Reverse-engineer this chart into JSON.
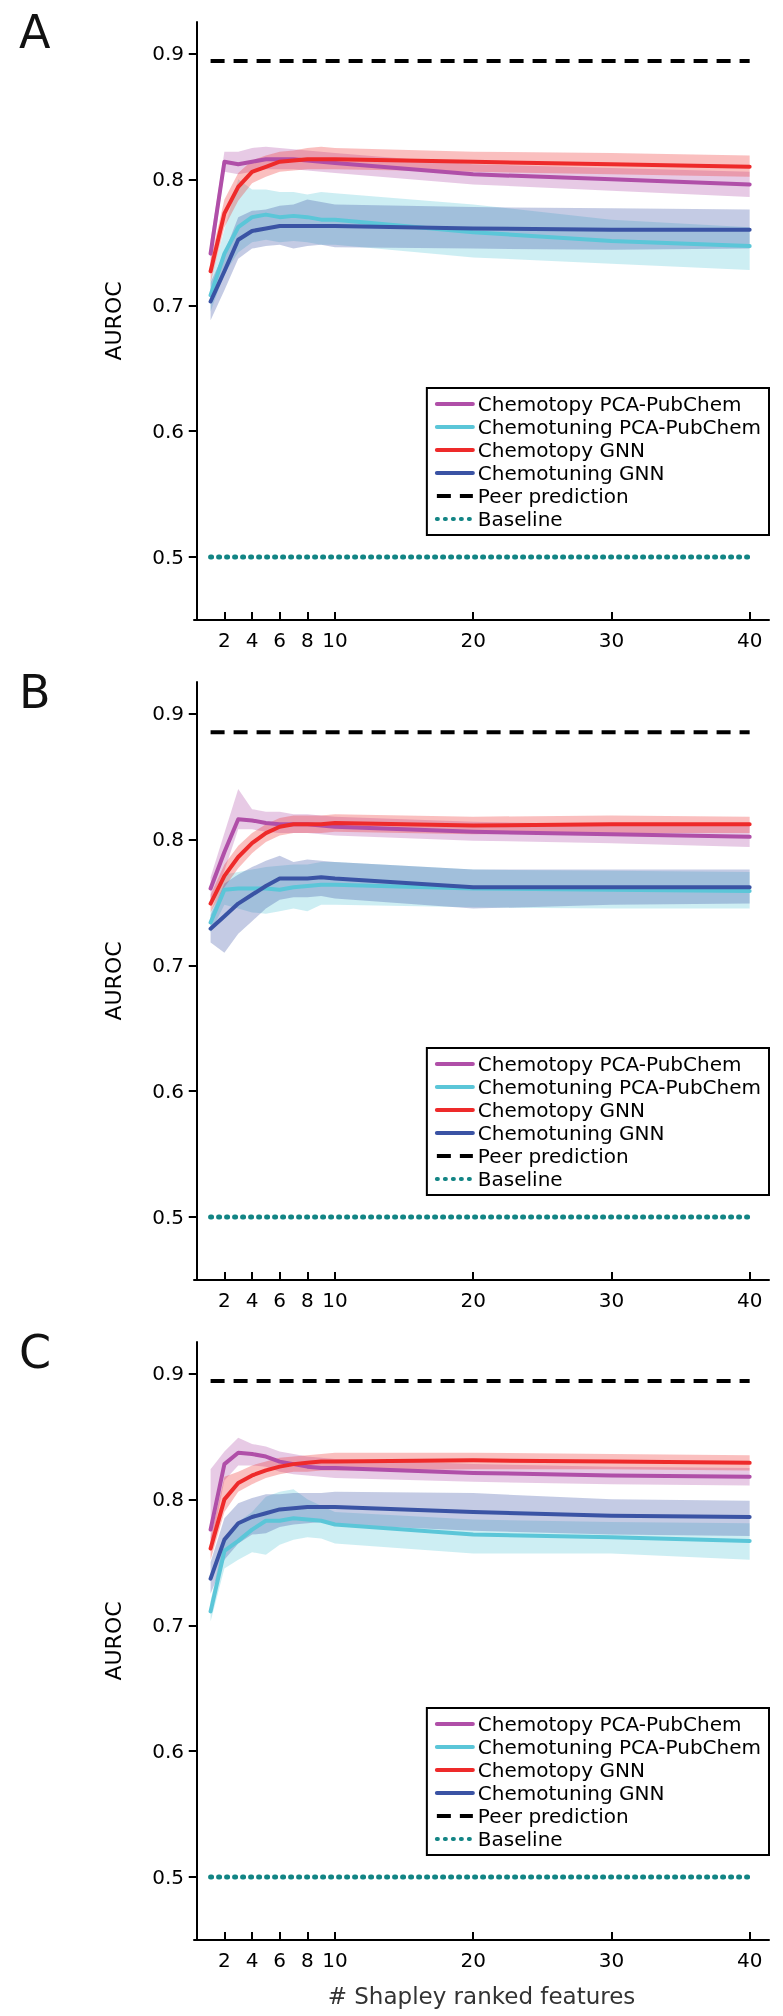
{
  "chart_data": [
    {
      "type": "line",
      "title": "A",
      "ylabel": "AUROC",
      "x": [
        1,
        2,
        3,
        4,
        5,
        6,
        7,
        8,
        9,
        10,
        20,
        30,
        40
      ],
      "xlim": [
        -0.2,
        41.4
      ],
      "xticks": [
        2,
        4,
        6,
        8,
        10,
        20,
        30,
        40
      ],
      "ylim": [
        0.45,
        0.925
      ],
      "yticks": [
        0.5,
        0.6,
        0.7,
        0.8,
        0.9
      ],
      "legend": "right",
      "marker": "none",
      "series": [
        {
          "name": "Chemotopy PCA-PubChem",
          "color": "#b04fa8",
          "values": [
            0.741,
            0.814,
            0.812,
            0.814,
            0.816,
            0.816,
            0.816,
            0.815,
            0.814,
            0.813,
            0.804,
            0.8,
            0.796
          ],
          "lower": [
            0.73,
            0.806,
            0.804,
            0.806,
            0.808,
            0.808,
            0.808,
            0.807,
            0.806,
            0.805,
            0.796,
            0.791,
            0.786
          ],
          "upper": [
            0.752,
            0.822,
            0.822,
            0.825,
            0.826,
            0.825,
            0.824,
            0.823,
            0.822,
            0.821,
            0.812,
            0.809,
            0.806
          ]
        },
        {
          "name": "Chemotuning PCA-PubChem",
          "color": "#5bc6d8",
          "values": [
            0.708,
            0.741,
            0.762,
            0.77,
            0.772,
            0.77,
            0.771,
            0.77,
            0.768,
            0.768,
            0.758,
            0.751,
            0.747
          ],
          "lower": [
            0.695,
            0.725,
            0.742,
            0.75,
            0.752,
            0.75,
            0.751,
            0.75,
            0.748,
            0.748,
            0.738,
            0.733,
            0.728
          ],
          "upper": [
            0.72,
            0.76,
            0.8,
            0.792,
            0.792,
            0.79,
            0.79,
            0.788,
            0.79,
            0.789,
            0.78,
            0.768,
            0.762
          ]
        },
        {
          "name": "Chemotopy GNN",
          "color": "#ee2a2a",
          "values": [
            0.727,
            0.773,
            0.794,
            0.806,
            0.81,
            0.814,
            0.815,
            0.816,
            0.816,
            0.816,
            0.814,
            0.812,
            0.81
          ],
          "lower": [
            0.718,
            0.762,
            0.783,
            0.797,
            0.802,
            0.806,
            0.807,
            0.808,
            0.808,
            0.808,
            0.806,
            0.804,
            0.802
          ],
          "upper": [
            0.736,
            0.784,
            0.805,
            0.815,
            0.819,
            0.822,
            0.823,
            0.825,
            0.826,
            0.825,
            0.822,
            0.821,
            0.819
          ]
        },
        {
          "name": "Chemotuning GNN",
          "color": "#3a53a4",
          "values": [
            0.703,
            0.727,
            0.752,
            0.759,
            0.761,
            0.763,
            0.763,
            0.763,
            0.763,
            0.763,
            0.761,
            0.76,
            0.76
          ],
          "lower": [
            0.688,
            0.712,
            0.737,
            0.745,
            0.747,
            0.748,
            0.745,
            0.747,
            0.748,
            0.746,
            0.745,
            0.744,
            0.745
          ],
          "upper": [
            0.718,
            0.742,
            0.77,
            0.775,
            0.776,
            0.779,
            0.78,
            0.784,
            0.782,
            0.78,
            0.778,
            0.777,
            0.776
          ]
        },
        {
          "name": "Peer prediction",
          "color": "#000000",
          "values": [
            0.894,
            0.894,
            0.894,
            0.894,
            0.894,
            0.894,
            0.894,
            0.894,
            0.894,
            0.894,
            0.894,
            0.894,
            0.894
          ],
          "line_style": "dashed"
        },
        {
          "name": "Baseline",
          "color": "#138585",
          "values": [
            0.5,
            0.5,
            0.5,
            0.5,
            0.5,
            0.5,
            0.5,
            0.5,
            0.5,
            0.5,
            0.5,
            0.5,
            0.5
          ],
          "line_style": "dotted"
        }
      ]
    },
    {
      "type": "line",
      "title": "B",
      "ylabel": "AUROC",
      "x": [
        1,
        2,
        3,
        4,
        5,
        6,
        7,
        8,
        9,
        10,
        20,
        30,
        40
      ],
      "xlim": [
        -0.2,
        41.4
      ],
      "xticks": [
        2,
        4,
        6,
        8,
        10,
        20,
        30,
        40
      ],
      "ylim": [
        0.45,
        0.925
      ],
      "yticks": [
        0.5,
        0.6,
        0.7,
        0.8,
        0.9
      ],
      "legend": "right",
      "marker": "none",
      "series": [
        {
          "name": "Chemotopy PCA-PubChem",
          "color": "#b04fa8",
          "values": [
            0.761,
            0.79,
            0.816,
            0.815,
            0.813,
            0.812,
            0.812,
            0.812,
            0.811,
            0.81,
            0.806,
            0.804,
            0.802
          ],
          "lower": [
            0.752,
            0.775,
            0.808,
            0.808,
            0.806,
            0.805,
            0.805,
            0.805,
            0.804,
            0.803,
            0.799,
            0.797,
            0.794
          ],
          "upper": [
            0.77,
            0.805,
            0.84,
            0.824,
            0.822,
            0.822,
            0.82,
            0.82,
            0.819,
            0.818,
            0.814,
            0.812,
            0.811
          ]
        },
        {
          "name": "Chemotuning PCA-PubChem",
          "color": "#5bc6d8",
          "values": [
            0.734,
            0.76,
            0.761,
            0.761,
            0.761,
            0.76,
            0.762,
            0.763,
            0.764,
            0.764,
            0.761,
            0.76,
            0.759
          ],
          "lower": [
            0.726,
            0.748,
            0.745,
            0.742,
            0.741,
            0.743,
            0.745,
            0.743,
            0.748,
            0.748,
            0.746,
            0.745,
            0.745
          ],
          "upper": [
            0.742,
            0.772,
            0.774,
            0.776,
            0.778,
            0.779,
            0.78,
            0.78,
            0.782,
            0.782,
            0.776,
            0.775,
            0.774
          ]
        },
        {
          "name": "Chemotopy GNN",
          "color": "#ee2a2a",
          "values": [
            0.749,
            0.771,
            0.786,
            0.797,
            0.805,
            0.81,
            0.812,
            0.812,
            0.812,
            0.813,
            0.811,
            0.812,
            0.812
          ],
          "lower": [
            0.742,
            0.762,
            0.777,
            0.789,
            0.798,
            0.803,
            0.805,
            0.805,
            0.805,
            0.806,
            0.804,
            0.805,
            0.805
          ],
          "upper": [
            0.756,
            0.78,
            0.795,
            0.805,
            0.812,
            0.817,
            0.819,
            0.819,
            0.819,
            0.82,
            0.818,
            0.819,
            0.818
          ]
        },
        {
          "name": "Chemotuning GNN",
          "color": "#3a53a4",
          "values": [
            0.729,
            0.739,
            0.749,
            0.756,
            0.763,
            0.769,
            0.769,
            0.769,
            0.77,
            0.769,
            0.762,
            0.762,
            0.762
          ],
          "lower": [
            0.718,
            0.71,
            0.725,
            0.735,
            0.745,
            0.752,
            0.754,
            0.754,
            0.755,
            0.753,
            0.745,
            0.748,
            0.749
          ],
          "upper": [
            0.74,
            0.765,
            0.772,
            0.778,
            0.783,
            0.787,
            0.782,
            0.784,
            0.783,
            0.782,
            0.776,
            0.776,
            0.776
          ]
        },
        {
          "name": "Peer prediction",
          "color": "#000000",
          "values": [
            0.885,
            0.885,
            0.885,
            0.885,
            0.885,
            0.885,
            0.885,
            0.885,
            0.885,
            0.885,
            0.885,
            0.885,
            0.885
          ],
          "line_style": "dashed"
        },
        {
          "name": "Baseline",
          "color": "#138585",
          "values": [
            0.5,
            0.5,
            0.5,
            0.5,
            0.5,
            0.5,
            0.5,
            0.5,
            0.5,
            0.5,
            0.5,
            0.5,
            0.5
          ],
          "line_style": "dotted"
        }
      ]
    },
    {
      "type": "line",
      "title": "C",
      "ylabel": "AUROC",
      "xlabel": "# Shapley ranked features",
      "x": [
        1,
        2,
        3,
        4,
        5,
        6,
        7,
        8,
        9,
        10,
        20,
        30,
        40
      ],
      "xlim": [
        -0.2,
        41.4
      ],
      "xticks": [
        2,
        4,
        6,
        8,
        10,
        20,
        30,
        40
      ],
      "ylim": [
        0.45,
        0.925
      ],
      "yticks": [
        0.5,
        0.6,
        0.7,
        0.8,
        0.9
      ],
      "legend": "right",
      "marker": "none",
      "series": [
        {
          "name": "Chemotopy PCA-PubChem",
          "color": "#b04fa8",
          "values": [
            0.776,
            0.828,
            0.837,
            0.836,
            0.834,
            0.83,
            0.828,
            0.826,
            0.825,
            0.825,
            0.821,
            0.819,
            0.818
          ],
          "lower": [
            0.76,
            0.815,
            0.827,
            0.827,
            0.826,
            0.822,
            0.82,
            0.819,
            0.818,
            0.817,
            0.814,
            0.812,
            0.811
          ],
          "upper": [
            0.824,
            0.838,
            0.849,
            0.844,
            0.842,
            0.838,
            0.836,
            0.834,
            0.833,
            0.832,
            0.828,
            0.826,
            0.825
          ]
        },
        {
          "name": "Chemotuning PCA-PubChem",
          "color": "#5bc6d8",
          "values": [
            0.711,
            0.759,
            0.767,
            0.776,
            0.783,
            0.783,
            0.785,
            0.784,
            0.783,
            0.78,
            0.772,
            0.77,
            0.767
          ],
          "lower": [
            0.703,
            0.745,
            0.752,
            0.758,
            0.756,
            0.764,
            0.768,
            0.77,
            0.769,
            0.765,
            0.757,
            0.757,
            0.752
          ],
          "upper": [
            0.719,
            0.77,
            0.782,
            0.79,
            0.802,
            0.806,
            0.808,
            0.8,
            0.795,
            0.79,
            0.784,
            0.782,
            0.781
          ]
        },
        {
          "name": "Chemotopy GNN",
          "color": "#ee2a2a",
          "values": [
            0.761,
            0.8,
            0.813,
            0.819,
            0.823,
            0.826,
            0.828,
            0.829,
            0.83,
            0.83,
            0.831,
            0.83,
            0.829
          ],
          "lower": [
            0.752,
            0.79,
            0.806,
            0.812,
            0.817,
            0.82,
            0.822,
            0.822,
            0.823,
            0.823,
            0.824,
            0.824,
            0.823
          ],
          "upper": [
            0.77,
            0.818,
            0.822,
            0.827,
            0.83,
            0.833,
            0.834,
            0.835,
            0.836,
            0.837,
            0.837,
            0.836,
            0.835
          ]
        },
        {
          "name": "Chemotuning GNN",
          "color": "#3a53a4",
          "values": [
            0.737,
            0.768,
            0.781,
            0.786,
            0.789,
            0.792,
            0.793,
            0.794,
            0.794,
            0.794,
            0.79,
            0.787,
            0.786
          ],
          "lower": [
            0.725,
            0.752,
            0.765,
            0.772,
            0.773,
            0.778,
            0.78,
            0.781,
            0.782,
            0.78,
            0.775,
            0.772,
            0.771
          ],
          "upper": [
            0.75,
            0.785,
            0.797,
            0.801,
            0.804,
            0.804,
            0.805,
            0.805,
            0.805,
            0.806,
            0.805,
            0.8,
            0.799
          ]
        },
        {
          "name": "Peer prediction",
          "color": "#000000",
          "values": [
            0.894,
            0.894,
            0.894,
            0.894,
            0.894,
            0.894,
            0.894,
            0.894,
            0.894,
            0.894,
            0.894,
            0.894,
            0.894
          ],
          "line_style": "dashed"
        },
        {
          "name": "Baseline",
          "color": "#138585",
          "values": [
            0.5,
            0.5,
            0.5,
            0.5,
            0.5,
            0.5,
            0.5,
            0.5,
            0.5,
            0.5,
            0.5,
            0.5,
            0.5
          ],
          "line_style": "dotted"
        }
      ]
    }
  ]
}
